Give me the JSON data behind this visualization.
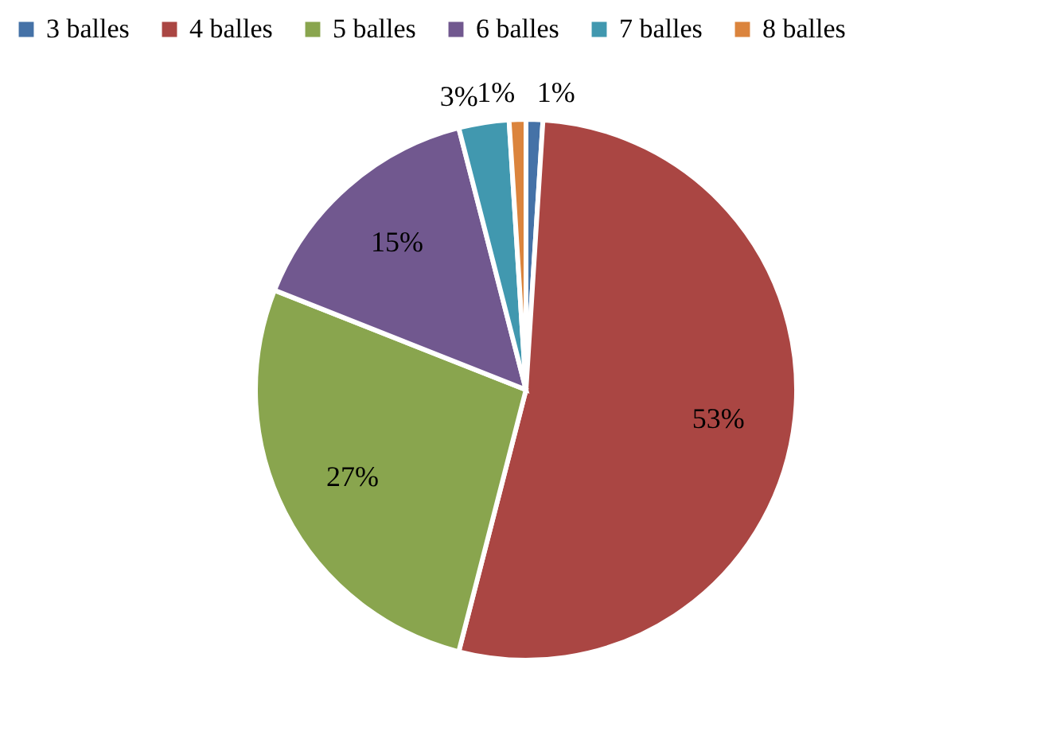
{
  "chart_data": {
    "type": "pie",
    "categories": [
      "3 balles",
      "4 balles",
      "5 balles",
      "6 balles",
      "7 balles",
      "8 balles"
    ],
    "values": [
      1,
      53,
      27,
      15,
      3,
      1
    ],
    "colors": [
      "#4572a7",
      "#aa4643",
      "#89a54e",
      "#71588f",
      "#4198af",
      "#db843d"
    ],
    "value_labels": [
      "1%",
      "53%",
      "27%",
      "15%",
      "3%",
      "1%"
    ],
    "legend": "top"
  }
}
